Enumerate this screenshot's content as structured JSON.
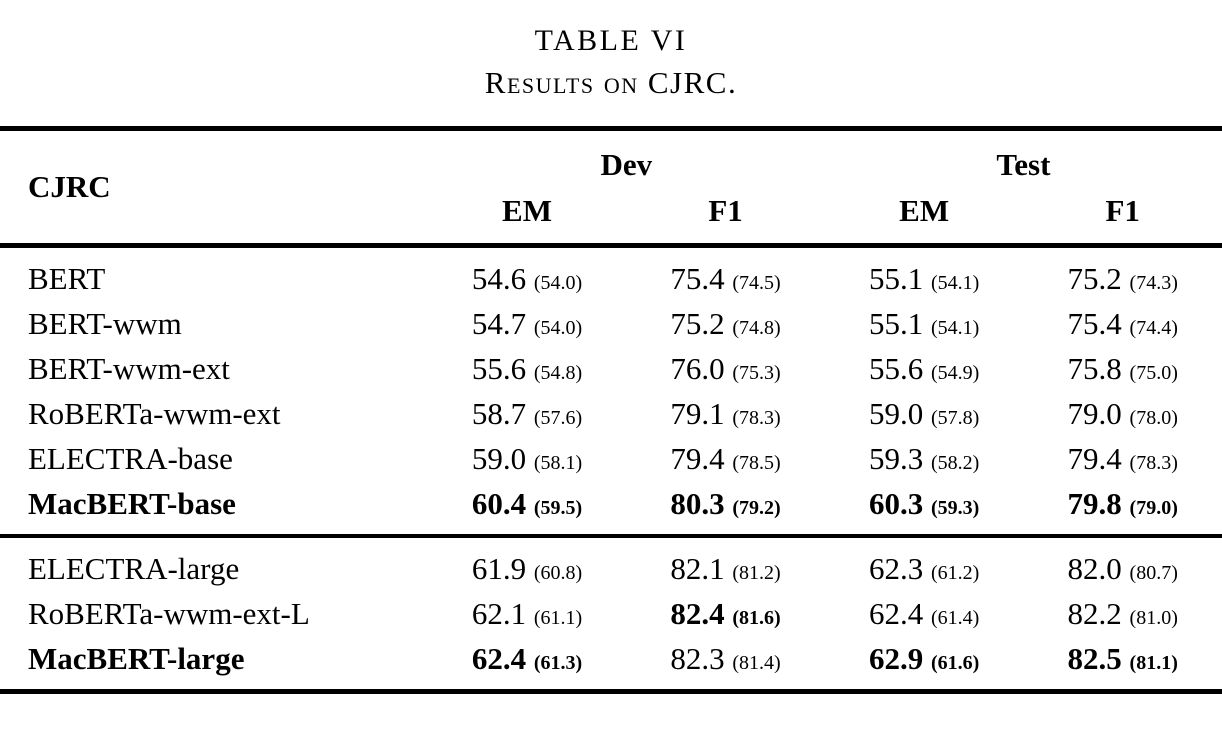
{
  "title": {
    "line1": "TABLE VI",
    "line2": "Results on CJRC."
  },
  "table": {
    "corner_label": "CJRC",
    "group_headers": {
      "dev": "Dev",
      "test": "Test"
    },
    "sub_headers": [
      "EM",
      "F1",
      "EM",
      "F1"
    ],
    "sections": [
      {
        "rows": [
          {
            "model": "BERT",
            "bold_model": false,
            "cells": [
              {
                "v": "54.6",
                "p": "(54.0)",
                "bold": false
              },
              {
                "v": "75.4",
                "p": "(74.5)",
                "bold": false
              },
              {
                "v": "55.1",
                "p": "(54.1)",
                "bold": false
              },
              {
                "v": "75.2",
                "p": "(74.3)",
                "bold": false
              }
            ]
          },
          {
            "model": "BERT-wwm",
            "bold_model": false,
            "cells": [
              {
                "v": "54.7",
                "p": "(54.0)",
                "bold": false
              },
              {
                "v": "75.2",
                "p": "(74.8)",
                "bold": false
              },
              {
                "v": "55.1",
                "p": "(54.1)",
                "bold": false
              },
              {
                "v": "75.4",
                "p": "(74.4)",
                "bold": false
              }
            ]
          },
          {
            "model": "BERT-wwm-ext",
            "bold_model": false,
            "cells": [
              {
                "v": "55.6",
                "p": "(54.8)",
                "bold": false
              },
              {
                "v": "76.0",
                "p": "(75.3)",
                "bold": false
              },
              {
                "v": "55.6",
                "p": "(54.9)",
                "bold": false
              },
              {
                "v": "75.8",
                "p": "(75.0)",
                "bold": false
              }
            ]
          },
          {
            "model": "RoBERTa-wwm-ext",
            "bold_model": false,
            "cells": [
              {
                "v": "58.7",
                "p": "(57.6)",
                "bold": false
              },
              {
                "v": "79.1",
                "p": "(78.3)",
                "bold": false
              },
              {
                "v": "59.0",
                "p": "(57.8)",
                "bold": false
              },
              {
                "v": "79.0",
                "p": "(78.0)",
                "bold": false
              }
            ]
          },
          {
            "model": "ELECTRA-base",
            "bold_model": false,
            "cells": [
              {
                "v": "59.0",
                "p": "(58.1)",
                "bold": false
              },
              {
                "v": "79.4",
                "p": "(78.5)",
                "bold": false
              },
              {
                "v": "59.3",
                "p": "(58.2)",
                "bold": false
              },
              {
                "v": "79.4",
                "p": "(78.3)",
                "bold": false
              }
            ]
          },
          {
            "model": "MacBERT-base",
            "bold_model": true,
            "cells": [
              {
                "v": "60.4",
                "p": "(59.5)",
                "bold": true
              },
              {
                "v": "80.3",
                "p": "(79.2)",
                "bold": true
              },
              {
                "v": "60.3",
                "p": "(59.3)",
                "bold": true
              },
              {
                "v": "79.8",
                "p": "(79.0)",
                "bold": true
              }
            ]
          }
        ]
      },
      {
        "rows": [
          {
            "model": "ELECTRA-large",
            "bold_model": false,
            "cells": [
              {
                "v": "61.9",
                "p": "(60.8)",
                "bold": false
              },
              {
                "v": "82.1",
                "p": "(81.2)",
                "bold": false
              },
              {
                "v": "62.3",
                "p": "(61.2)",
                "bold": false
              },
              {
                "v": "82.0",
                "p": "(80.7)",
                "bold": false
              }
            ]
          },
          {
            "model": "RoBERTa-wwm-ext-L",
            "bold_model": false,
            "cells": [
              {
                "v": "62.1",
                "p": "(61.1)",
                "bold": false
              },
              {
                "v": "82.4",
                "p": "(81.6)",
                "bold": true
              },
              {
                "v": "62.4",
                "p": "(61.4)",
                "bold": false
              },
              {
                "v": "82.2",
                "p": "(81.0)",
                "bold": false
              }
            ]
          },
          {
            "model": "MacBERT-large",
            "bold_model": true,
            "cells": [
              {
                "v": "62.4",
                "p": "(61.3)",
                "bold": true
              },
              {
                "v": "82.3",
                "p": "(81.4)",
                "bold": false
              },
              {
                "v": "62.9",
                "p": "(61.6)",
                "bold": true
              },
              {
                "v": "82.5",
                "p": "(81.1)",
                "bold": true
              }
            ]
          }
        ]
      }
    ]
  }
}
